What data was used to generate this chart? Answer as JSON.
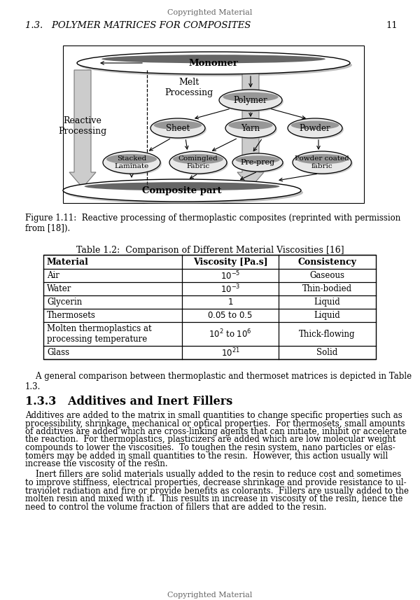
{
  "page_header": "Copyrighted Material",
  "page_footer": "Copyrighted Material",
  "section_header": "1.3.   POLYMER MATRICES FOR COMPOSITES",
  "page_number": "11",
  "figure_caption": "Figure 1.11:  Reactive processing of thermoplastic composites (reprinted with permission\nfrom [18]).",
  "table_title": "Table 1.2:  Comparison of Different Material Viscosities [16]",
  "table_headers": [
    "Material",
    "Viscosity [Pa.s]",
    "Consistency"
  ],
  "section_title_2": "1.3.3   Additives and Inert Fillers",
  "p0": "    A general comparison between thermoplastic and thermoset matrices is depicted in Table\n1.3.",
  "p1_lines": [
    "Additives are added to the matrix in small quantities to change specific properties such as",
    "processibility, shrinkage, mechanical or optical properties.  For thermosets, small amounts",
    "of additives are added which are cross-linking agents that can initiate, inhibit or accelerate",
    "the reaction.  For thermoplastics, plasticizers are added which are low molecular weight",
    "compounds to lower the viscosities.  To toughen the resin system, nano particles or elas-",
    "tomers may be added in small quantities to the resin.  However, this action usually will",
    "increase the viscosity of the resin."
  ],
  "p2_lines": [
    "    Inert fillers are solid materials usually added to the resin to reduce cost and sometimes",
    "to improve stiffness, electrical properties, decrease shrinkage and provide resistance to ul-",
    "traviolet radiation and fire or provide benefits as colorants.  Fillers are usually added to the",
    "molten resin and mixed with it.  This results in increase in viscosity of the resin, hence the",
    "need to control the volume fraction of fillers that are added to the resin."
  ],
  "bg_color": "#ffffff"
}
